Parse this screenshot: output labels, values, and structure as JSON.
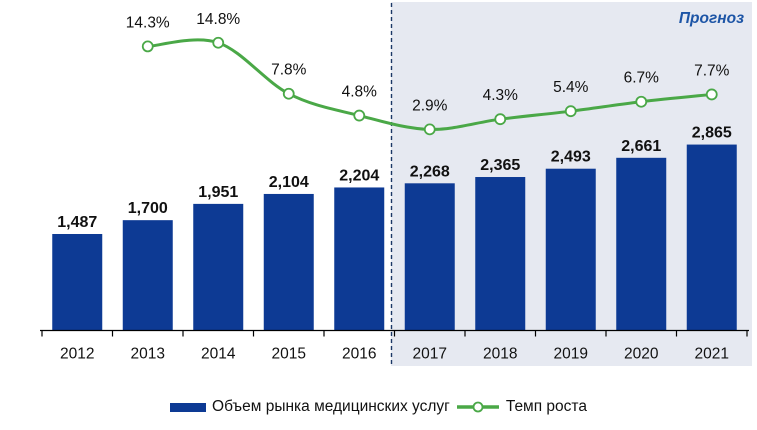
{
  "chart_data": {
    "type": "combo-bar-line",
    "categories": [
      "2012",
      "2013",
      "2014",
      "2015",
      "2016",
      "2017",
      "2018",
      "2019",
      "2020",
      "2021"
    ],
    "series": [
      {
        "name": "Объем рынка медицинских услуг",
        "type": "bar",
        "values": [
          1487,
          1700,
          1951,
          2104,
          2204,
          2268,
          2365,
          2493,
          2661,
          2865
        ],
        "labels": [
          "1,487",
          "1,700",
          "1,951",
          "2,104",
          "2,204",
          "2,268",
          "2,365",
          "2,493",
          "2,661",
          "2,865"
        ],
        "color": "#0d3a94"
      },
      {
        "name": "Темп роста",
        "type": "line",
        "values": [
          null,
          14.3,
          14.8,
          7.8,
          4.8,
          2.9,
          4.3,
          5.4,
          6.7,
          7.7
        ],
        "labels": [
          null,
          "14.3%",
          "14.8%",
          "7.8%",
          "4.8%",
          "2.9%",
          "4.3%",
          "5.4%",
          "6.7%",
          "7.7%"
        ],
        "color": "#4aa847",
        "marker": "open-circle",
        "marker_fill": "#ffffff"
      }
    ],
    "forecast": {
      "label": "Прогноз",
      "start_category": "2017",
      "end_category": "2021",
      "region_color": "#e6e9f1",
      "divider_style": "dashed",
      "divider_color": "#1b3766",
      "label_color": "#1d55a6"
    },
    "legend": {
      "position": "bottom",
      "entries": [
        "Объем рынка медицинских услуг",
        "Темп роста"
      ]
    },
    "axes": {
      "x_ticks": [
        "2012",
        "2013",
        "2014",
        "2015",
        "2016",
        "2017",
        "2018",
        "2019",
        "2020",
        "2021"
      ],
      "x_axis_color": "#000000",
      "y_axis_visible": false,
      "bar_axis_min": 0,
      "value_labels_shown": true,
      "grid": false
    },
    "value_label_color": "#111111"
  }
}
